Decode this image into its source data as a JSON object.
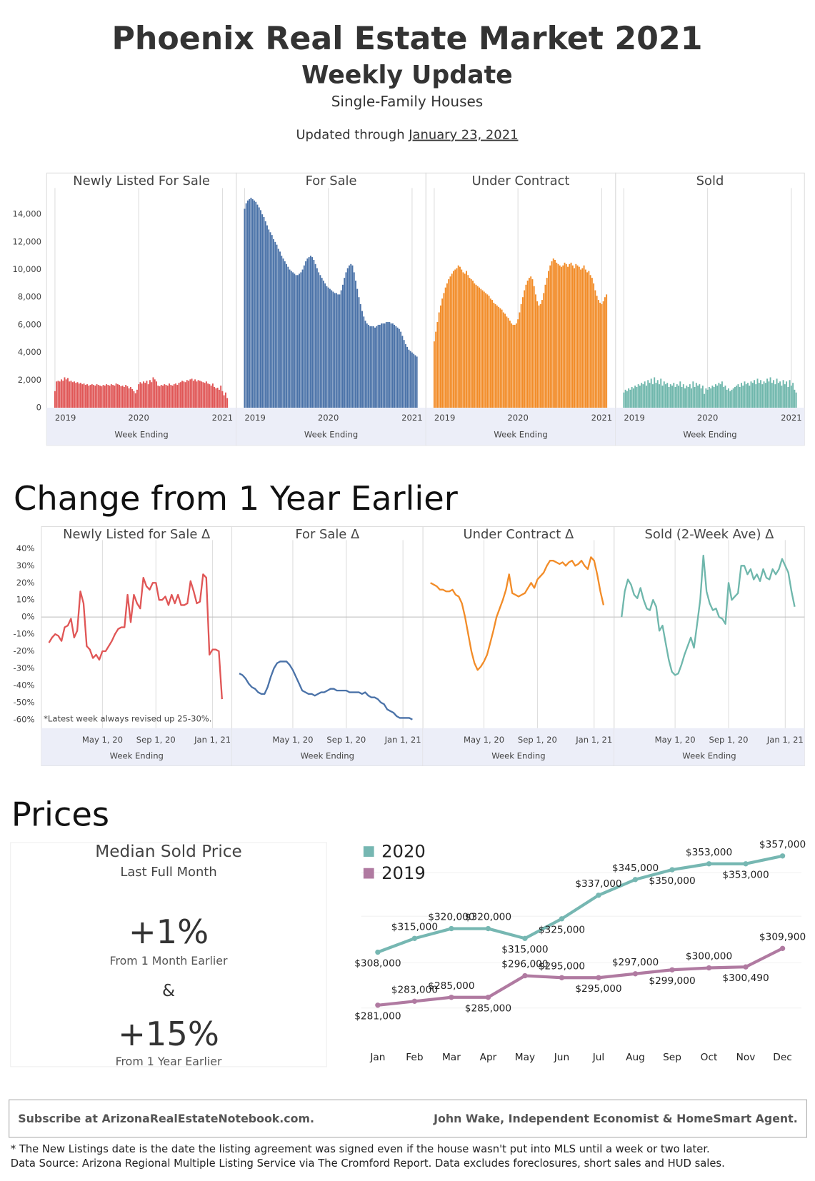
{
  "header": {
    "title": "Phoenix Real Estate Market 2021",
    "subtitle": "Weekly Update",
    "description": "Single-Family Houses",
    "updated_label": "Updated through",
    "updated_date": "January 23, 2021"
  },
  "chart_data": [
    {
      "type": "bar",
      "facets": true,
      "xlabel": "Week Ending",
      "categories": [
        "2019",
        null,
        null,
        null,
        null,
        null,
        null,
        null,
        null,
        null,
        null,
        null,
        null,
        null,
        null,
        null,
        null,
        null,
        null,
        null,
        null,
        null,
        null,
        null,
        null,
        null,
        null,
        null,
        null,
        null,
        null,
        null,
        null,
        null,
        null,
        null,
        null,
        null,
        null,
        null,
        null,
        null,
        null,
        null,
        null,
        null,
        null,
        null,
        null,
        null,
        null,
        null,
        "2020",
        null,
        null,
        null,
        null,
        null,
        null,
        null,
        null,
        null,
        null,
        null,
        null,
        null,
        null,
        null,
        null,
        null,
        null,
        null,
        null,
        null,
        null,
        null,
        null,
        null,
        null,
        null,
        null,
        null,
        null,
        null,
        null,
        null,
        null,
        null,
        null,
        null,
        null,
        null,
        null,
        null,
        null,
        null,
        null,
        null,
        null,
        null,
        null,
        null,
        null,
        null,
        "2021",
        null,
        null,
        null
      ],
      "ylim": [
        0,
        15900
      ],
      "yticks": [
        0,
        {
          "value": 2000,
          "label": "2,000"
        },
        {
          "value": 4000,
          "label": "4,000"
        },
        {
          "value": 6000,
          "label": "6,000"
        },
        {
          "value": 8000,
          "label": "8,000"
        },
        {
          "value": 10000,
          "label": "10,000"
        },
        {
          "value": 12000,
          "label": "12,000"
        },
        {
          "value": 14000,
          "label": "14,000"
        }
      ],
      "series": [
        {
          "name": "Newly Listed For Sale",
          "color": "#e05656",
          "values": [
            1200,
            1900,
            1950,
            1900,
            2050,
            1950,
            2200,
            2050,
            2150,
            1900,
            1950,
            1850,
            1900,
            1800,
            1850,
            1750,
            1800,
            1700,
            1750,
            1650,
            1700,
            1600,
            1650,
            1700,
            1650,
            1600,
            1700,
            1650,
            1600,
            1550,
            1650,
            1600,
            1700,
            1650,
            1600,
            1700,
            1650,
            1600,
            1750,
            1700,
            1650,
            1550,
            1600,
            1500,
            1650,
            1550,
            1400,
            1500,
            1350,
            1200,
            1050,
            1300,
            1700,
            1850,
            1750,
            1900,
            1800,
            1950,
            1700,
            2000,
            1850,
            2200,
            2050,
            1900,
            1600,
            1550,
            1650,
            1600,
            1700,
            1650,
            1600,
            1750,
            1650,
            1600,
            1700,
            1750,
            1650,
            1800,
            1850,
            1950,
            1900,
            1850,
            2000,
            1950,
            2050,
            2100,
            1950,
            2050,
            1900,
            2000,
            1950,
            1900,
            1850,
            1800,
            1900,
            1750,
            1700,
            1600,
            1750,
            1500,
            1400,
            1450,
            1300,
            1600,
            1200,
            900,
            1100,
            700
          ]
        },
        {
          "name": "For Sale",
          "color": "#4a72a8",
          "values": [
            14400,
            14800,
            15000,
            15100,
            15200,
            15100,
            15000,
            14900,
            14700,
            14500,
            14300,
            14000,
            13800,
            13500,
            13200,
            12900,
            12700,
            12500,
            12200,
            12000,
            11800,
            11500,
            11300,
            11000,
            10800,
            10600,
            10400,
            10200,
            10000,
            9900,
            9800,
            9700,
            9600,
            9600,
            9700,
            9800,
            10000,
            10300,
            10600,
            10800,
            10900,
            11000,
            10900,
            10700,
            10400,
            10100,
            9800,
            9600,
            9400,
            9200,
            9000,
            8800,
            8700,
            8600,
            8500,
            8400,
            8300,
            8300,
            8200,
            8200,
            8500,
            8900,
            9400,
            9800,
            10100,
            10300,
            10400,
            10300,
            9800,
            9200,
            8600,
            8000,
            7500,
            7000,
            6600,
            6300,
            6100,
            6000,
            5900,
            5900,
            5900,
            5800,
            5900,
            6000,
            6000,
            6100,
            6100,
            6100,
            6200,
            6200,
            6200,
            6100,
            6100,
            6000,
            5900,
            5800,
            5700,
            5500,
            5200,
            4900,
            4600,
            4400,
            4200,
            4100,
            4000,
            3900,
            3800,
            3700
          ]
        },
        {
          "name": "Under Contract",
          "color": "#f28c28",
          "values": [
            4800,
            5500,
            6200,
            6900,
            7400,
            7900,
            8300,
            8700,
            9000,
            9300,
            9500,
            9700,
            9900,
            10000,
            10100,
            10300,
            10200,
            10000,
            9800,
            9700,
            9900,
            9600,
            9400,
            9300,
            9200,
            9000,
            8900,
            8800,
            8700,
            8600,
            8500,
            8400,
            8300,
            8200,
            8100,
            7900,
            7800,
            7600,
            7500,
            7400,
            7300,
            7200,
            7100,
            6900,
            6800,
            6600,
            6500,
            6300,
            6100,
            6000,
            6000,
            6100,
            6400,
            6900,
            7500,
            8000,
            8500,
            8900,
            9200,
            9400,
            9500,
            9300,
            8800,
            8200,
            7700,
            7400,
            7500,
            7800,
            8300,
            8900,
            9400,
            9900,
            10300,
            10600,
            10800,
            10700,
            10500,
            10400,
            10300,
            10200,
            10300,
            10500,
            10400,
            10200,
            10400,
            10500,
            10300,
            10100,
            10400,
            10300,
            10200,
            10000,
            10100,
            10300,
            10000,
            9800,
            9900,
            9600,
            9400,
            9000,
            8500,
            8100,
            7800,
            7600,
            7500,
            7700,
            8000,
            8200
          ]
        },
        {
          "name": "Sold",
          "color": "#6fb7ac",
          "values": [
            1100,
            1300,
            1200,
            1400,
            1300,
            1500,
            1400,
            1600,
            1500,
            1700,
            1600,
            1800,
            1700,
            1900,
            1600,
            2000,
            1800,
            2100,
            1700,
            2200,
            1800,
            2000,
            1700,
            2100,
            1600,
            1900,
            1700,
            1800,
            1500,
            1700,
            1600,
            1800,
            1500,
            1700,
            1600,
            1900,
            1500,
            1700,
            1400,
            1600,
            1500,
            1700,
            1400,
            1900,
            1500,
            1800,
            1600,
            1700,
            1400,
            1600,
            1000,
            1400,
            1300,
            1500,
            1400,
            1600,
            1500,
            1700,
            1600,
            1800,
            1700,
            1900,
            1500,
            1600,
            1300,
            1400,
            1200,
            1300,
            1400,
            1500,
            1600,
            1700,
            1500,
            1800,
            1600,
            1900,
            1700,
            1800,
            1600,
            1900,
            1800,
            2000,
            1700,
            2100,
            1800,
            2000,
            1700,
            1900,
            1800,
            2100,
            1900,
            2200,
            1800,
            2000,
            1700,
            2100,
            1800,
            1900,
            1600,
            2000,
            1700,
            1900,
            1500,
            2000,
            1600,
            1800,
            1300,
            1100
          ]
        }
      ]
    },
    {
      "type": "line",
      "facets": true,
      "zero_line": true,
      "title": "Change from 1 Year Earlier",
      "xlabel": "Week Ending",
      "annotation": "*Latest week always revised up 25-30%.",
      "categories": [
        null,
        null,
        null,
        null,
        null,
        null,
        null,
        null,
        null,
        null,
        null,
        null,
        null,
        null,
        null,
        null,
        null,
        "May 1, 20",
        null,
        null,
        null,
        null,
        null,
        null,
        null,
        null,
        null,
        null,
        null,
        null,
        null,
        null,
        null,
        null,
        "Sep 1, 20",
        null,
        null,
        null,
        null,
        null,
        null,
        null,
        null,
        null,
        null,
        null,
        null,
        null,
        null,
        null,
        null,
        null,
        "Jan 1, 21",
        null,
        null,
        null
      ],
      "ylim": [
        -65,
        45
      ],
      "yticks": [
        {
          "value": -60,
          "label": "-60%"
        },
        {
          "value": -50,
          "label": "-50%"
        },
        {
          "value": -40,
          "label": "-40%"
        },
        {
          "value": -30,
          "label": "-30%"
        },
        {
          "value": -20,
          "label": "-20%"
        },
        {
          "value": -10,
          "label": "-10%"
        },
        {
          "value": 0,
          "label": "0%"
        },
        {
          "value": 10,
          "label": "10%"
        },
        {
          "value": 20,
          "label": "20%"
        },
        {
          "value": 30,
          "label": "30%"
        },
        {
          "value": 40,
          "label": "40%"
        }
      ],
      "series": [
        {
          "name": "Newly Listed for Sale Δ",
          "color": "#e05656",
          "values": [
            -15,
            -12,
            -10,
            -11,
            -14,
            -6,
            -5,
            -1,
            -12,
            -8,
            15,
            8,
            -17,
            -19,
            -24,
            -22,
            -25,
            -20,
            -20,
            -17,
            -14,
            -10,
            -7,
            -6,
            -6,
            13,
            -3,
            13,
            8,
            5,
            23,
            18,
            16,
            20,
            20,
            10,
            10,
            12,
            7,
            13,
            8,
            13,
            7,
            7,
            8,
            21,
            15,
            8,
            9,
            25,
            23,
            -22,
            -19,
            -19,
            -20,
            -48
          ]
        },
        {
          "name": "For Sale Δ",
          "color": "#4a72a8",
          "values": [
            -33,
            -34,
            -36,
            -39,
            -41,
            -42,
            -44,
            -45,
            -45,
            -41,
            -35,
            -30,
            -27,
            -26,
            -26,
            -26,
            -28,
            -31,
            -35,
            -39,
            -43,
            -44,
            -45,
            -45,
            -46,
            -45,
            -44,
            -44,
            -43,
            -42,
            -42,
            -43,
            -43,
            -43,
            -43,
            -44,
            -44,
            -44,
            -44,
            -45,
            -44,
            -46,
            -47,
            -47,
            -48,
            -50,
            -51,
            -54,
            -55,
            -56,
            -58,
            -59,
            -59,
            -59,
            -59,
            -60
          ]
        },
        {
          "name": "Under Contract Δ",
          "color": "#f28c28",
          "values": [
            20,
            19,
            18,
            16,
            16,
            15,
            15,
            16,
            13,
            12,
            8,
            0,
            -10,
            -20,
            -27,
            -31,
            -29,
            -26,
            -22,
            -15,
            -8,
            0,
            5,
            10,
            16,
            25,
            14,
            13,
            12,
            13,
            14,
            17,
            20,
            17,
            22,
            24,
            26,
            30,
            33,
            33,
            32,
            31,
            32,
            30,
            32,
            33,
            30,
            31,
            33,
            30,
            28,
            35,
            33,
            25,
            15,
            7
          ]
        },
        {
          "name": "Sold (2-Week Ave) Δ",
          "color": "#6fb7ac",
          "values": [
            0,
            15,
            22,
            19,
            13,
            11,
            17,
            10,
            5,
            4,
            10,
            6,
            -8,
            -5,
            -15,
            -25,
            -32,
            -34,
            -33,
            -28,
            -22,
            -17,
            -12,
            -18,
            -4,
            10,
            36,
            15,
            8,
            4,
            5,
            0,
            -1,
            -4,
            20,
            10,
            12,
            14,
            30,
            30,
            25,
            28,
            22,
            25,
            21,
            28,
            23,
            22,
            28,
            25,
            28,
            34,
            30,
            26,
            15,
            6
          ]
        }
      ]
    },
    {
      "type": "line",
      "facets": false,
      "title": "Prices",
      "legend": "top-left",
      "categories": [
        "Jan",
        "Feb",
        "Mar",
        "Apr",
        "May",
        "Jun",
        "Jul",
        "Aug",
        "Sep",
        "Oct",
        "Nov",
        "Dec"
      ],
      "ylim": [
        270000,
        365000
      ],
      "series": [
        {
          "name": "2020",
          "color": "#76b7b2",
          "values": [
            308000,
            315000,
            320000,
            320000,
            315000,
            325000,
            337000,
            345000,
            350000,
            353000,
            353000,
            357000
          ],
          "value_labels": [
            "$308,000",
            "$315,000",
            "$320,000",
            "$320,000",
            "$315,000",
            "$325,000",
            "$337,000",
            "$345,000",
            "$350,000",
            "$353,000",
            "$353,000",
            "$357,000"
          ]
        },
        {
          "name": "2019",
          "color": "#b07aa1",
          "values": [
            281000,
            283000,
            285000,
            285000,
            296000,
            295000,
            295000,
            297000,
            299000,
            300000,
            300490,
            309900
          ],
          "value_labels": [
            "$281,000",
            "$283,000",
            "$285,000",
            "$285,000",
            "$296,000",
            "$295,000",
            "$295,000",
            "$297,000",
            "$299,000",
            "$300,000",
            "$300,490",
            "$309,900"
          ]
        }
      ]
    }
  ],
  "price_summary": {
    "title": "Median Sold Price",
    "subtitle": "Last Full Month",
    "month_change": "+1%",
    "month_label": "From 1 Month Earlier",
    "joiner": "&",
    "year_change": "+15%",
    "year_label": "From 1 Year Earlier"
  },
  "footer": {
    "subscribe": "Subscribe at ArizonaRealEstateNotebook.com.",
    "author": "John Wake, Independent Economist & HomeSmart Agent.",
    "notes": [
      "* The New Listings date is the date the listing agreement was signed even if the house wasn't put into MLS until a week or two later.",
      "Data Source: Arizona Regional Multiple Listing Service via The Cromford Report. Data excludes foreclosures, short sales and HUD sales."
    ]
  }
}
